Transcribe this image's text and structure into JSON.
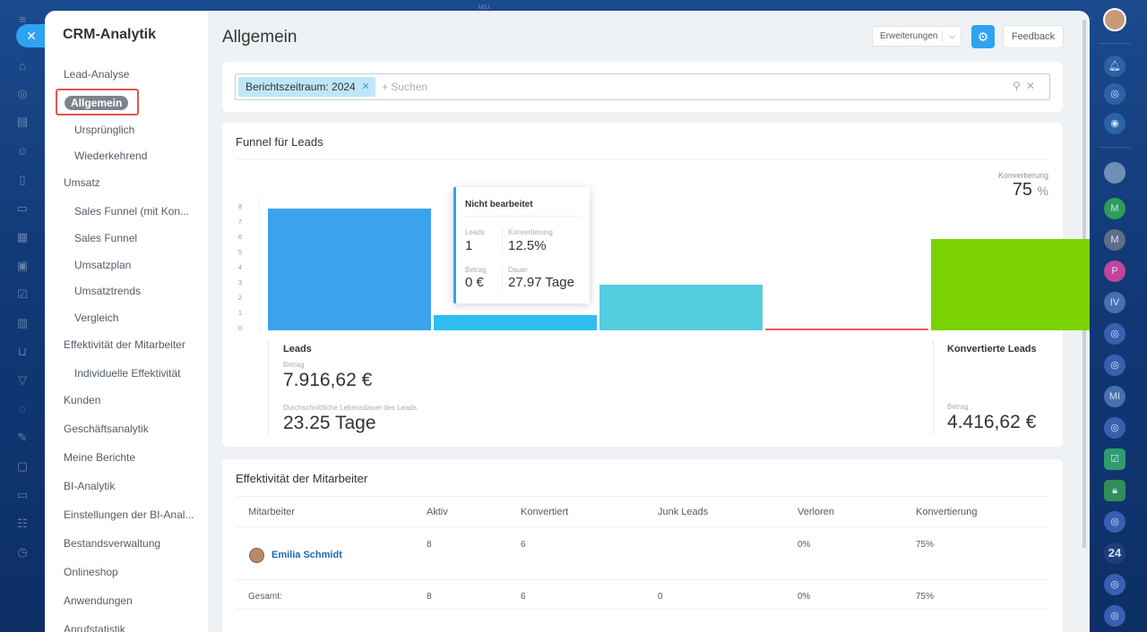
{
  "top_label": "NEU",
  "left_rail_icons": [
    "menu-icon",
    "home-icon",
    "feed-icon",
    "tasks-icon",
    "contacts-icon",
    "docs-icon",
    "deals-icon",
    "calendar-icon",
    "checklist-icon",
    "chart-icon",
    "cart-icon",
    "funnel-icon",
    "sites-icon",
    "pen-icon",
    "storage-icon",
    "chat-icon",
    "group-icon",
    "clock-icon"
  ],
  "right_rail": {
    "badge_24": "24",
    "letters": [
      "M",
      "M",
      "P",
      "IV",
      "MI"
    ]
  },
  "menu": {
    "title": "CRM-Analytik",
    "items": [
      {
        "label": "Lead-Analyse",
        "level": "top"
      },
      {
        "label": "Allgemein",
        "level": "active"
      },
      {
        "label": "Ursprünglich",
        "level": "sub"
      },
      {
        "label": "Wiederkehrend",
        "level": "sub"
      },
      {
        "label": "Umsatz",
        "level": "top"
      },
      {
        "label": "Sales Funnel (mit Kon...",
        "level": "sub"
      },
      {
        "label": "Sales Funnel",
        "level": "sub"
      },
      {
        "label": "Umsatzplan",
        "level": "sub"
      },
      {
        "label": "Umsatztrends",
        "level": "sub"
      },
      {
        "label": "Vergleich",
        "level": "sub"
      },
      {
        "label": "Effektivität der Mitarbeiter",
        "level": "top"
      },
      {
        "label": "Individuelle Effektivität",
        "level": "sub"
      },
      {
        "label": "Kunden",
        "level": "top"
      },
      {
        "label": "Geschäftsanalytik",
        "level": "top"
      },
      {
        "label": "Meine Berichte",
        "level": "top"
      },
      {
        "label": "BI-Analytik",
        "level": "top"
      },
      {
        "label": "Einstellungen der BI-Anal...",
        "level": "top"
      },
      {
        "label": "Bestandsverwaltung",
        "level": "top"
      },
      {
        "label": "Onlineshop",
        "level": "top"
      },
      {
        "label": "Anwendungen",
        "level": "top"
      },
      {
        "label": "Anrufstatistik",
        "level": "top"
      }
    ]
  },
  "header": {
    "title": "Allgemein",
    "extensions_label": "Erweiterungen",
    "feedback_label": "Feedback"
  },
  "filter": {
    "tag": "Berichtszeitraum: 2024",
    "add_placeholder": "+ Suchen"
  },
  "funnel": {
    "title": "Funnel für Leads",
    "conversion_label": "Konvertierung",
    "conversion_value": "75",
    "conversion_unit": "%",
    "tooltip": {
      "title": "Nicht bearbeitet",
      "leads_label": "Leads",
      "leads_value": "1",
      "conversion_label": "Konvertierung",
      "conversion_value": "12.5%",
      "amount_label": "Betrag",
      "amount_value": "0 €",
      "duration_label": "Dauer",
      "duration_value": "27.97 Tage"
    },
    "leads_summary": {
      "title": "Leads",
      "amount_label": "Betrag",
      "amount_value": "7.916,62 €",
      "lifetime_label": "Durchschnittliche Lebensdauer des Leads",
      "lifetime_value": "23.25 Tage"
    },
    "converted_summary": {
      "title": "Konvertierte Leads",
      "amount_label": "Betrag",
      "amount_value": "4.416,62 €"
    }
  },
  "chart_data": {
    "type": "bar",
    "y_ticks": [
      "8",
      "7",
      "6",
      "5",
      "4",
      "3",
      "2",
      "1",
      "0"
    ],
    "ylim": [
      0,
      8
    ],
    "values": [
      8,
      1,
      3,
      0.05,
      6
    ],
    "colors": [
      "#3aa3ec",
      "#2fbdf2",
      "#55cde0",
      "#f05454",
      "#7ad200"
    ]
  },
  "effectiveness": {
    "title": "Effektivität der Mitarbeiter",
    "columns": [
      "Mitarbeiter",
      "Aktiv",
      "Konvertiert",
      "Junk Leads",
      "Verloren",
      "Konvertierung"
    ],
    "rows": [
      {
        "name": "Emilia Schmidt",
        "active": "8",
        "converted": "6",
        "junk": "",
        "lost": "0%",
        "conversion": "75%"
      }
    ],
    "total": {
      "label": "Gesamt:",
      "active": "8",
      "converted": "6",
      "junk": "0",
      "lost": "0%",
      "conversion": "75%"
    }
  }
}
